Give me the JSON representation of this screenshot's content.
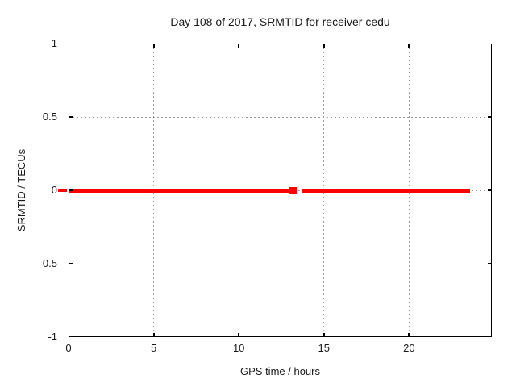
{
  "chart_data": {
    "type": "line",
    "title": "Day 108 of 2017, SRMTID for receiver cedu",
    "xlabel": "GPS time / hours",
    "ylabel": "SRMTID / TECUs",
    "xlim": [
      0,
      24.86
    ],
    "ylim": [
      -1,
      1
    ],
    "xticks": [
      0,
      5,
      10,
      15,
      20
    ],
    "xtick_labels": [
      "0",
      "5",
      "10",
      "15",
      "20"
    ],
    "yticks": [
      -1,
      -0.5,
      0,
      0.5,
      1
    ],
    "ytick_labels": [
      "-1",
      "-0.5",
      "0",
      "0.5",
      "1"
    ],
    "grid": true,
    "legend": "none",
    "colors": {
      "series": "#ff0000",
      "grid": "#9a9a9a",
      "axis": "#000000",
      "text": "#1a1a1a"
    },
    "series": [
      {
        "name": "SRMTID",
        "marker": "plus",
        "value_y": 0,
        "band_thickness_px": 5,
        "segments_hours": [
          [
            0.05,
            12.97
          ],
          [
            13.68,
            23.58
          ]
        ],
        "isolated_point_hours": [
          13.18
        ],
        "off_axis_dash_hours": [
          -0.62,
          -0.1
        ]
      }
    ]
  }
}
